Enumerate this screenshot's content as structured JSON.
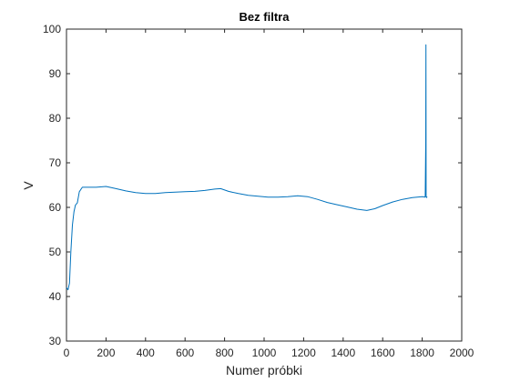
{
  "chart_data": {
    "type": "line",
    "title": "Bez filtra",
    "xlabel": "Numer próbki",
    "ylabel": "V",
    "xlim": [
      0,
      2000
    ],
    "ylim": [
      30,
      100
    ],
    "xticks": [
      "0",
      "200",
      "400",
      "600",
      "800",
      "1000",
      "1200",
      "1400",
      "1600",
      "1800",
      "2000"
    ],
    "yticks": [
      "30",
      "40",
      "50",
      "60",
      "70",
      "80",
      "90",
      "100"
    ],
    "grid": false,
    "line_color": "#0072BD",
    "series": [
      {
        "name": "",
        "x": [
          0,
          8,
          15,
          22,
          30,
          38,
          45,
          55,
          65,
          80,
          100,
          150,
          200,
          250,
          300,
          350,
          400,
          450,
          500,
          550,
          600,
          650,
          700,
          750,
          780,
          820,
          870,
          920,
          970,
          1020,
          1070,
          1120,
          1170,
          1220,
          1270,
          1320,
          1370,
          1420,
          1470,
          1520,
          1560,
          1600,
          1650,
          1700,
          1750,
          1800,
          1815,
          1818,
          1819,
          1820,
          1822,
          1825
        ],
        "y": [
          42,
          41.5,
          43,
          50,
          56,
          59,
          60.5,
          61,
          63.5,
          64.5,
          64.5,
          64.5,
          64.7,
          64.2,
          63.7,
          63.3,
          63.1,
          63.1,
          63.3,
          63.4,
          63.5,
          63.6,
          63.8,
          64.1,
          64.2,
          63.6,
          63.1,
          62.7,
          62.5,
          62.3,
          62.3,
          62.4,
          62.6,
          62.4,
          61.8,
          61.1,
          60.6,
          60.1,
          59.6,
          59.3,
          59.7,
          60.4,
          61.2,
          61.8,
          62.2,
          62.4,
          62.3,
          75,
          96.5,
          62.5,
          62.2,
          62.4
        ]
      }
    ]
  }
}
